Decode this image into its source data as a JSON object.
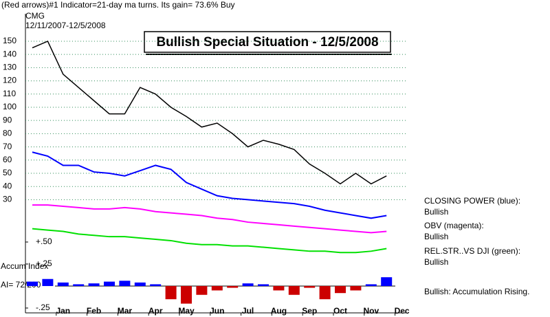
{
  "chart_data": {
    "type": "line",
    "header": "(Red arrows)#1 Indicator=21-day ma turns. Its gain= 73.6% Buy",
    "symbol": "CMG",
    "subtitle": "12/11/2007-12/5/2008",
    "title": "Bullish Special Situation - 12/5/2008",
    "categories": [
      null,
      null,
      "Jan",
      null,
      "Feb",
      null,
      "Mar",
      null,
      "Apr",
      null,
      "May",
      null,
      "Jun",
      null,
      "Jul",
      null,
      "Aug",
      null,
      "Sep",
      null,
      "Oct",
      null,
      "Nov",
      null,
      "Dec"
    ],
    "ylim": [
      -55.7,
      170.8
    ],
    "yticks": [
      30,
      40,
      50,
      60,
      70,
      80,
      90,
      100,
      110,
      120,
      130,
      140,
      150
    ],
    "y2lim": [
      -0.305,
      3.094
    ],
    "y2ticks": [
      {
        "value": 0.5,
        "label": "+.50"
      },
      {
        "value": 0.25,
        "label": "+.25"
      },
      {
        "value": -0.25,
        "label": "-.25"
      }
    ],
    "grid": true,
    "grid_color": "#2e8b57",
    "series": [
      {
        "name": "CMG price",
        "color": "#000000",
        "values": [
          145,
          150,
          125,
          115,
          105,
          95,
          95,
          115,
          110,
          100,
          93,
          85,
          88,
          80,
          70,
          75,
          72,
          68,
          57,
          50,
          42,
          50,
          42,
          48,
          null
        ]
      },
      {
        "name": "CLOSING POWER (blue):",
        "status": "Bullish",
        "color": "#0000ff",
        "values": [
          66,
          63,
          56,
          56,
          51,
          50,
          48,
          52,
          56,
          53,
          43,
          38,
          33,
          31,
          30,
          29,
          28,
          27,
          25,
          22,
          20,
          18,
          16,
          18,
          null
        ]
      },
      {
        "name": "OBV (magenta):",
        "status": "Bullish",
        "color": "#ff00ff",
        "values": [
          26,
          26,
          25,
          24,
          23,
          23,
          24,
          23,
          21,
          20,
          19,
          18,
          16,
          15,
          13,
          12,
          11,
          10,
          9,
          8,
          7,
          6,
          5,
          6,
          null
        ]
      },
      {
        "name": "REL.STR..VS DJI (green):",
        "status": "Bullish",
        "color": "#00e000",
        "values": [
          8,
          7,
          6,
          4,
          3,
          2,
          2,
          1,
          0,
          -1,
          -3,
          -4,
          -4,
          -5,
          -5,
          -6,
          -7,
          -8,
          -9,
          -9,
          -10,
          -10,
          -9,
          -7,
          null
        ]
      },
      {
        "name": "Accum Index",
        "ai_label": "AI= 72/200",
        "status": "Bullish: Accumulation Rising.",
        "type": "bar",
        "axis": "y2",
        "positive_color": "#0000ff",
        "negative_color": "#cc0000",
        "values": [
          0.05,
          0.08,
          0.04,
          0.02,
          0.03,
          0.05,
          0.06,
          0.04,
          0.02,
          -0.15,
          -0.2,
          -0.1,
          -0.05,
          -0.02,
          0.03,
          0.02,
          -0.05,
          -0.1,
          -0.02,
          -0.15,
          -0.08,
          -0.05,
          0.02,
          0.1,
          null
        ]
      }
    ]
  }
}
